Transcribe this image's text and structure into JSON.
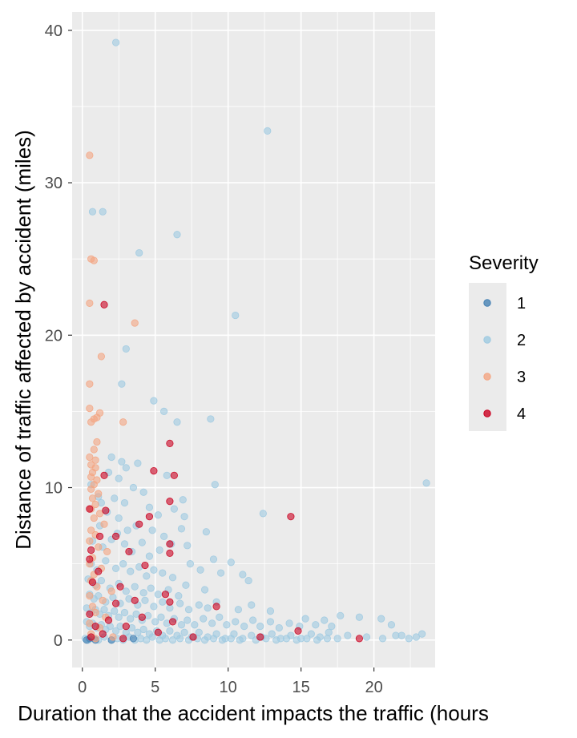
{
  "chart_data": {
    "type": "scatter",
    "xlabel": "Duration that the accident impacts the traffic (hours",
    "ylabel": "Distance of traffic affected by accident (miles)",
    "xlim": [
      -0.7,
      24.2
    ],
    "ylim": [
      -1.8,
      41.2
    ],
    "x_ticks": [
      0,
      5,
      10,
      15,
      20
    ],
    "y_ticks": [
      0,
      10,
      20,
      30,
      40
    ],
    "grid": true,
    "legend_title": "Severity",
    "legend_position": "right",
    "colors": {
      "1": "#4682b4",
      "2": "#9ecae1",
      "3": "#f4a582",
      "4": "#ca0020"
    },
    "series": [
      {
        "name": "1",
        "points": [
          [
            0.3,
            0.0
          ],
          [
            0.5,
            0.1
          ],
          [
            0.9,
            0.0
          ],
          [
            2.0,
            0.0
          ],
          [
            3.5,
            0.1
          ]
        ]
      },
      {
        "name": "2",
        "points": [
          [
            2.3,
            39.2
          ],
          [
            12.7,
            33.4
          ],
          [
            0.7,
            28.1
          ],
          [
            1.4,
            28.1
          ],
          [
            6.5,
            26.6
          ],
          [
            3.9,
            25.4
          ],
          [
            10.5,
            21.3
          ],
          [
            3.0,
            19.1
          ],
          [
            2.7,
            16.8
          ],
          [
            4.9,
            15.7
          ],
          [
            5.6,
            15.0
          ],
          [
            6.5,
            14.3
          ],
          [
            8.8,
            14.5
          ],
          [
            2.0,
            12.0
          ],
          [
            2.7,
            11.7
          ],
          [
            3.0,
            11.3
          ],
          [
            3.8,
            11.6
          ],
          [
            1.8,
            11.0
          ],
          [
            2.5,
            10.6
          ],
          [
            0.6,
            10.2
          ],
          [
            1.1,
            9.4
          ],
          [
            2.2,
            9.3
          ],
          [
            5.8,
            10.8
          ],
          [
            9.1,
            10.2
          ],
          [
            23.6,
            10.3
          ],
          [
            1.3,
            9.0
          ],
          [
            1.7,
            8.4
          ],
          [
            2.5,
            8.0
          ],
          [
            2.9,
            9.0
          ],
          [
            3.5,
            10.0
          ],
          [
            4.2,
            9.7
          ],
          [
            4.6,
            8.7
          ],
          [
            5.2,
            8.2
          ],
          [
            6.3,
            8.6
          ],
          [
            6.9,
            9.2
          ],
          [
            7.0,
            8.1
          ],
          [
            12.4,
            8.3
          ],
          [
            1.2,
            7.5
          ],
          [
            2.4,
            7.0
          ],
          [
            3.1,
            7.2
          ],
          [
            3.7,
            7.5
          ],
          [
            4.8,
            7.2
          ],
          [
            5.6,
            6.8
          ],
          [
            6.8,
            7.3
          ],
          [
            8.5,
            7.1
          ],
          [
            0.7,
            6.5
          ],
          [
            1.4,
            6.1
          ],
          [
            2.0,
            6.6
          ],
          [
            2.9,
            6.3
          ],
          [
            3.4,
            5.8
          ],
          [
            4.1,
            6.4
          ],
          [
            4.6,
            5.5
          ],
          [
            5.3,
            5.9
          ],
          [
            6.1,
            6.3
          ],
          [
            7.2,
            6.2
          ],
          [
            9.0,
            5.3
          ],
          [
            10.2,
            5.1
          ],
          [
            0.6,
            5.0
          ],
          [
            1.0,
            4.6
          ],
          [
            1.6,
            5.2
          ],
          [
            2.3,
            4.7
          ],
          [
            2.8,
            5.0
          ],
          [
            3.3,
            4.5
          ],
          [
            3.9,
            4.8
          ],
          [
            4.4,
            4.2
          ],
          [
            4.9,
            4.6
          ],
          [
            5.5,
            4.4
          ],
          [
            6.2,
            4.1
          ],
          [
            7.4,
            5.0
          ],
          [
            8.1,
            4.6
          ],
          [
            9.5,
            4.4
          ],
          [
            11.0,
            4.3
          ],
          [
            0.4,
            4.0
          ],
          [
            0.9,
            3.6
          ],
          [
            1.3,
            3.9
          ],
          [
            1.9,
            3.4
          ],
          [
            2.5,
            3.7
          ],
          [
            3.0,
            3.2
          ],
          [
            3.6,
            3.5
          ],
          [
            4.2,
            3.1
          ],
          [
            4.7,
            3.4
          ],
          [
            5.2,
            3.0
          ],
          [
            5.9,
            3.3
          ],
          [
            6.6,
            2.9
          ],
          [
            7.1,
            3.6
          ],
          [
            8.4,
            3.3
          ],
          [
            11.4,
            3.9
          ],
          [
            0.5,
            3.0
          ],
          [
            0.8,
            2.7
          ],
          [
            1.1,
            2.9
          ],
          [
            1.6,
            2.5
          ],
          [
            2.1,
            2.8
          ],
          [
            2.6,
            2.4
          ],
          [
            3.2,
            2.7
          ],
          [
            3.8,
            2.3
          ],
          [
            4.3,
            2.6
          ],
          [
            4.9,
            2.2
          ],
          [
            5.5,
            2.5
          ],
          [
            6.0,
            2.1
          ],
          [
            6.7,
            2.4
          ],
          [
            7.3,
            2.0
          ],
          [
            8.0,
            2.3
          ],
          [
            8.6,
            2.1
          ],
          [
            9.2,
            2.5
          ],
          [
            10.7,
            2.0
          ],
          [
            11.6,
            2.3
          ],
          [
            12.9,
            1.9
          ],
          [
            0.3,
            2.1
          ],
          [
            0.6,
            1.8
          ],
          [
            0.9,
            2.0
          ],
          [
            1.2,
            1.7
          ],
          [
            1.5,
            2.0
          ],
          [
            1.8,
            1.6
          ],
          [
            2.2,
            1.9
          ],
          [
            2.5,
            1.5
          ],
          [
            2.9,
            1.8
          ],
          [
            3.3,
            1.4
          ],
          [
            3.7,
            1.7
          ],
          [
            4.1,
            1.3
          ],
          [
            4.5,
            1.6
          ],
          [
            5.0,
            1.2
          ],
          [
            5.4,
            1.5
          ],
          [
            5.8,
            1.1
          ],
          [
            6.3,
            1.4
          ],
          [
            6.8,
            1.0
          ],
          [
            7.2,
            1.3
          ],
          [
            7.7,
            1.0
          ],
          [
            8.3,
            1.4
          ],
          [
            8.9,
            1.1
          ],
          [
            9.4,
            1.5
          ],
          [
            9.9,
            1.0
          ],
          [
            10.5,
            1.2
          ],
          [
            11.1,
            0.9
          ],
          [
            11.7,
            1.3
          ],
          [
            12.2,
            0.9
          ],
          [
            12.9,
            1.2
          ],
          [
            13.5,
            0.8
          ],
          [
            14.2,
            1.1
          ],
          [
            14.9,
            0.9
          ],
          [
            15.3,
            1.4
          ],
          [
            16.0,
            1.0
          ],
          [
            16.6,
            1.3
          ],
          [
            17.1,
            0.9
          ],
          [
            17.7,
            1.6
          ],
          [
            19.0,
            1.5
          ],
          [
            20.5,
            1.4
          ],
          [
            21.2,
            1.0
          ],
          [
            0.3,
            1.2
          ],
          [
            0.5,
            0.9
          ],
          [
            0.7,
            1.1
          ],
          [
            1.0,
            0.8
          ],
          [
            1.3,
            1.0
          ],
          [
            1.6,
            0.7
          ],
          [
            1.9,
            0.9
          ],
          [
            2.3,
            0.6
          ],
          [
            2.6,
            0.9
          ],
          [
            3.0,
            0.5
          ],
          [
            3.4,
            0.8
          ],
          [
            3.8,
            0.5
          ],
          [
            4.2,
            0.7
          ],
          [
            4.6,
            0.4
          ],
          [
            5.1,
            0.6
          ],
          [
            5.5,
            0.3
          ],
          [
            6.0,
            0.6
          ],
          [
            6.5,
            0.3
          ],
          [
            7.0,
            0.5
          ],
          [
            7.5,
            0.2
          ],
          [
            8.0,
            0.5
          ],
          [
            8.6,
            0.2
          ],
          [
            9.2,
            0.4
          ],
          [
            9.8,
            0.1
          ],
          [
            10.4,
            0.4
          ],
          [
            11.0,
            0.1
          ],
          [
            11.6,
            0.3
          ],
          [
            12.3,
            0.2
          ],
          [
            13.0,
            0.4
          ],
          [
            13.6,
            0.1
          ],
          [
            14.3,
            0.3
          ],
          [
            15.0,
            0.1
          ],
          [
            15.7,
            0.4
          ],
          [
            16.3,
            0.2
          ],
          [
            16.9,
            0.5
          ],
          [
            17.5,
            0.1
          ],
          [
            18.2,
            0.3
          ],
          [
            19.5,
            0.2
          ],
          [
            20.6,
            0.1
          ],
          [
            21.5,
            0.3
          ],
          [
            21.9,
            0.3
          ],
          [
            22.4,
            0.1
          ],
          [
            22.9,
            0.2
          ],
          [
            23.3,
            0.4
          ],
          [
            0.2,
            0.1
          ],
          [
            0.4,
            0.0
          ],
          [
            0.8,
            0.1
          ],
          [
            1.1,
            0.0
          ],
          [
            1.5,
            0.2
          ],
          [
            2.0,
            0.0
          ],
          [
            2.4,
            0.1
          ],
          [
            2.8,
            0.0
          ],
          [
            3.2,
            0.2
          ],
          [
            3.6,
            0.0
          ],
          [
            4.0,
            0.1
          ],
          [
            4.4,
            0.0
          ],
          [
            4.8,
            0.2
          ],
          [
            5.3,
            0.0
          ],
          [
            5.7,
            0.1
          ],
          [
            6.2,
            0.0
          ],
          [
            6.7,
            0.1
          ],
          [
            7.3,
            0.0
          ],
          [
            7.9,
            0.1
          ],
          [
            8.4,
            0.0
          ],
          [
            9.0,
            0.1
          ],
          [
            9.6,
            0.0
          ],
          [
            10.2,
            0.1
          ],
          [
            10.8,
            0.0
          ],
          [
            11.9,
            0.0
          ],
          [
            12.6,
            0.1
          ],
          [
            13.3,
            0.0
          ],
          [
            14.0,
            0.1
          ],
          [
            14.7,
            0.0
          ],
          [
            15.4,
            0.1
          ],
          [
            16.1,
            0.0
          ],
          [
            16.8,
            0.1
          ]
        ]
      },
      {
        "name": "3",
        "points": [
          [
            0.5,
            31.8
          ],
          [
            0.6,
            25.0
          ],
          [
            0.8,
            24.9
          ],
          [
            0.5,
            22.1
          ],
          [
            3.6,
            20.8
          ],
          [
            1.3,
            18.6
          ],
          [
            0.5,
            16.8
          ],
          [
            0.5,
            15.2
          ],
          [
            1.0,
            14.6
          ],
          [
            1.2,
            14.9
          ],
          [
            0.6,
            14.3
          ],
          [
            2.8,
            14.3
          ],
          [
            0.8,
            14.5
          ],
          [
            1.0,
            13.0
          ],
          [
            0.8,
            12.5
          ],
          [
            0.5,
            12.0
          ],
          [
            0.9,
            11.8
          ],
          [
            0.6,
            11.5
          ],
          [
            0.9,
            11.3
          ],
          [
            0.7,
            11.0
          ],
          [
            0.6,
            10.7
          ],
          [
            1.0,
            10.5
          ],
          [
            0.8,
            10.2
          ],
          [
            0.6,
            9.9
          ],
          [
            1.1,
            9.6
          ],
          [
            0.7,
            9.3
          ],
          [
            0.9,
            8.9
          ],
          [
            0.6,
            8.6
          ],
          [
            1.2,
            8.3
          ],
          [
            0.8,
            8.0
          ],
          [
            1.5,
            7.6
          ],
          [
            0.6,
            7.2
          ],
          [
            0.9,
            6.9
          ],
          [
            0.5,
            6.5
          ],
          [
            1.1,
            6.1
          ],
          [
            1.7,
            5.8
          ],
          [
            0.7,
            5.4
          ],
          [
            0.5,
            5.0
          ],
          [
            1.3,
            4.7
          ],
          [
            0.8,
            4.3
          ],
          [
            0.6,
            3.9
          ],
          [
            1.0,
            3.5
          ],
          [
            2.0,
            3.2
          ],
          [
            0.5,
            2.9
          ],
          [
            1.4,
            2.6
          ],
          [
            0.7,
            2.2
          ],
          [
            0.9,
            1.8
          ],
          [
            1.6,
            1.5
          ],
          [
            0.5,
            1.1
          ],
          [
            1.2,
            0.8
          ],
          [
            0.6,
            0.4
          ],
          [
            2.1,
            0.2
          ],
          [
            0.9,
            0.1
          ]
        ]
      },
      {
        "name": "4",
        "points": [
          [
            1.5,
            22.0
          ],
          [
            6.0,
            12.9
          ],
          [
            4.9,
            11.1
          ],
          [
            6.3,
            10.8
          ],
          [
            1.5,
            10.8
          ],
          [
            6.0,
            9.1
          ],
          [
            0.5,
            8.6
          ],
          [
            1.6,
            8.5
          ],
          [
            14.3,
            8.1
          ],
          [
            4.6,
            8.1
          ],
          [
            3.9,
            7.6
          ],
          [
            1.2,
            6.8
          ],
          [
            2.3,
            6.8
          ],
          [
            6.0,
            6.3
          ],
          [
            0.6,
            5.9
          ],
          [
            3.2,
            5.8
          ],
          [
            6.0,
            5.7
          ],
          [
            0.5,
            5.3
          ],
          [
            1.1,
            4.5
          ],
          [
            4.3,
            4.9
          ],
          [
            0.7,
            3.8
          ],
          [
            2.6,
            3.5
          ],
          [
            5.7,
            3.0
          ],
          [
            3.6,
            2.6
          ],
          [
            6.0,
            2.5
          ],
          [
            9.2,
            2.2
          ],
          [
            2.3,
            2.4
          ],
          [
            0.5,
            1.7
          ],
          [
            1.8,
            1.3
          ],
          [
            4.1,
            1.5
          ],
          [
            6.2,
            1.2
          ],
          [
            0.9,
            0.9
          ],
          [
            3.0,
            0.9
          ],
          [
            1.4,
            0.4
          ],
          [
            5.2,
            0.5
          ],
          [
            7.6,
            0.2
          ],
          [
            12.2,
            0.2
          ],
          [
            14.8,
            0.6
          ],
          [
            19.0,
            0.1
          ],
          [
            2.8,
            0.1
          ],
          [
            0.6,
            0.2
          ]
        ]
      }
    ]
  }
}
